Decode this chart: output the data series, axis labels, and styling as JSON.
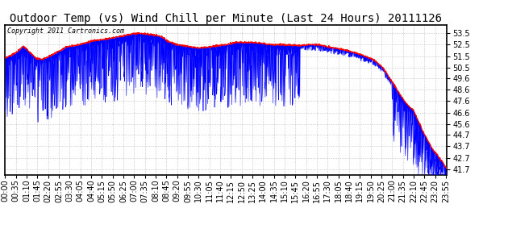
{
  "title": "Outdoor Temp (vs) Wind Chill per Minute (Last 24 Hours) 20111126",
  "copyright_text": "Copyright 2011 Cartronics.com",
  "yticks": [
    41.7,
    42.7,
    43.7,
    44.7,
    45.6,
    46.6,
    47.6,
    48.6,
    49.6,
    50.5,
    51.5,
    52.5,
    53.5
  ],
  "ymin": 41.2,
  "ymax": 54.2,
  "temp_color": "#ff0000",
  "windchill_color": "#0000ff",
  "background_color": "#ffffff",
  "grid_color": "#bbbbbb",
  "title_fontsize": 10,
  "copyright_fontsize": 6,
  "tick_fontsize": 7,
  "total_minutes": 1440,
  "xtick_step": 35
}
